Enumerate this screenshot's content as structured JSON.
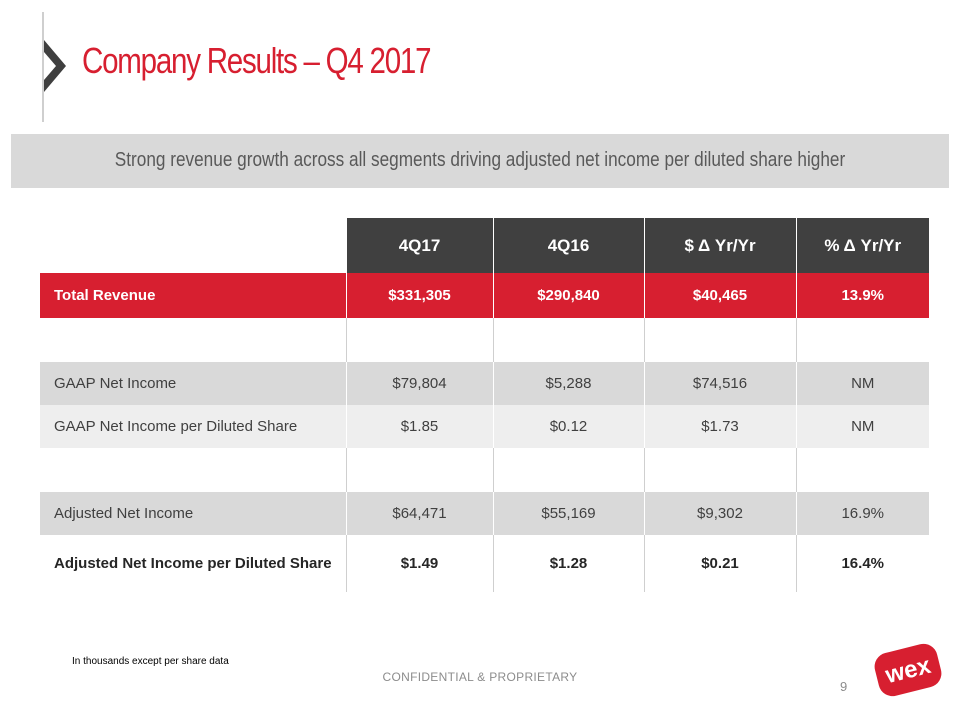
{
  "slide": {
    "title": "Company Results – Q4 2017",
    "subtitle": "Strong revenue growth across all segments driving adjusted net income per diluted share higher",
    "footnote": "In thousands except per share data",
    "confidential": "CONFIDENTIAL & PROPRIETARY",
    "page_number": "9",
    "logo_text": "wex"
  },
  "table": {
    "columns": [
      "4Q17",
      "4Q16",
      "$ Δ Yr/Yr",
      "% Δ Yr/Yr"
    ],
    "rows": [
      {
        "label": "Total Revenue",
        "values": [
          "$331,305",
          "$290,840",
          "$40,465",
          "13.9%"
        ]
      },
      {
        "label": "GAAP Net Income",
        "values": [
          "$79,804",
          "$5,288",
          "$74,516",
          "NM"
        ]
      },
      {
        "label": "GAAP Net Income per Diluted Share",
        "values": [
          "$1.85",
          "$0.12",
          "$1.73",
          "NM"
        ]
      },
      {
        "label": "Adjusted Net Income",
        "values": [
          "$64,471",
          "$55,169",
          "$9,302",
          "16.9%"
        ]
      },
      {
        "label": "Adjusted Net Income per Diluted Share",
        "values": [
          "$1.49",
          "$1.28",
          "$0.21",
          "16.4%"
        ]
      }
    ]
  },
  "colors": {
    "brand_red": "#d71f30",
    "header_dark": "#404040",
    "band_gray": "#d9d9d9"
  },
  "icons": {
    "title_marker": "chevron-right-icon",
    "logo": "wex-logo"
  }
}
